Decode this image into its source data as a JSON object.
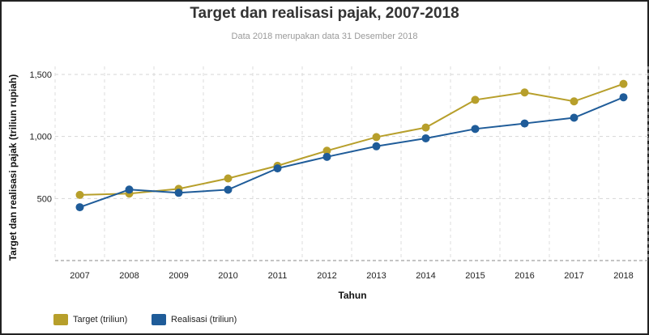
{
  "chart_data": {
    "type": "line",
    "title": "Target dan realisasi pajak, 2007-2018",
    "subtitle": "Data 2018 merupakan data 31 Desember 2018",
    "xlabel": "Tahun",
    "ylabel": "Target dan realisasi pajak (triliun rupiah)",
    "categories": [
      "2007",
      "2008",
      "2009",
      "2010",
      "2011",
      "2012",
      "2013",
      "2014",
      "2015",
      "2016",
      "2017",
      "2018"
    ],
    "y_ticks": [
      {
        "value": 500,
        "label": "500"
      },
      {
        "value": 1000,
        "label": "1,000"
      },
      {
        "value": 1500,
        "label": "1,500"
      }
    ],
    "ylim": [
      0,
      1500
    ],
    "grid": true,
    "legend_position": "bottom-left",
    "series": [
      {
        "name": "Target (triliun)",
        "color": "#b79f2b",
        "values": [
          529,
          540,
          578,
          662,
          764,
          885,
          995,
          1072,
          1295,
          1355,
          1283,
          1424
        ]
      },
      {
        "name": "Realisasi (triliun)",
        "color": "#1f5c99",
        "values": [
          430,
          572,
          546,
          571,
          743,
          836,
          921,
          985,
          1061,
          1105,
          1151,
          1316
        ]
      }
    ]
  }
}
